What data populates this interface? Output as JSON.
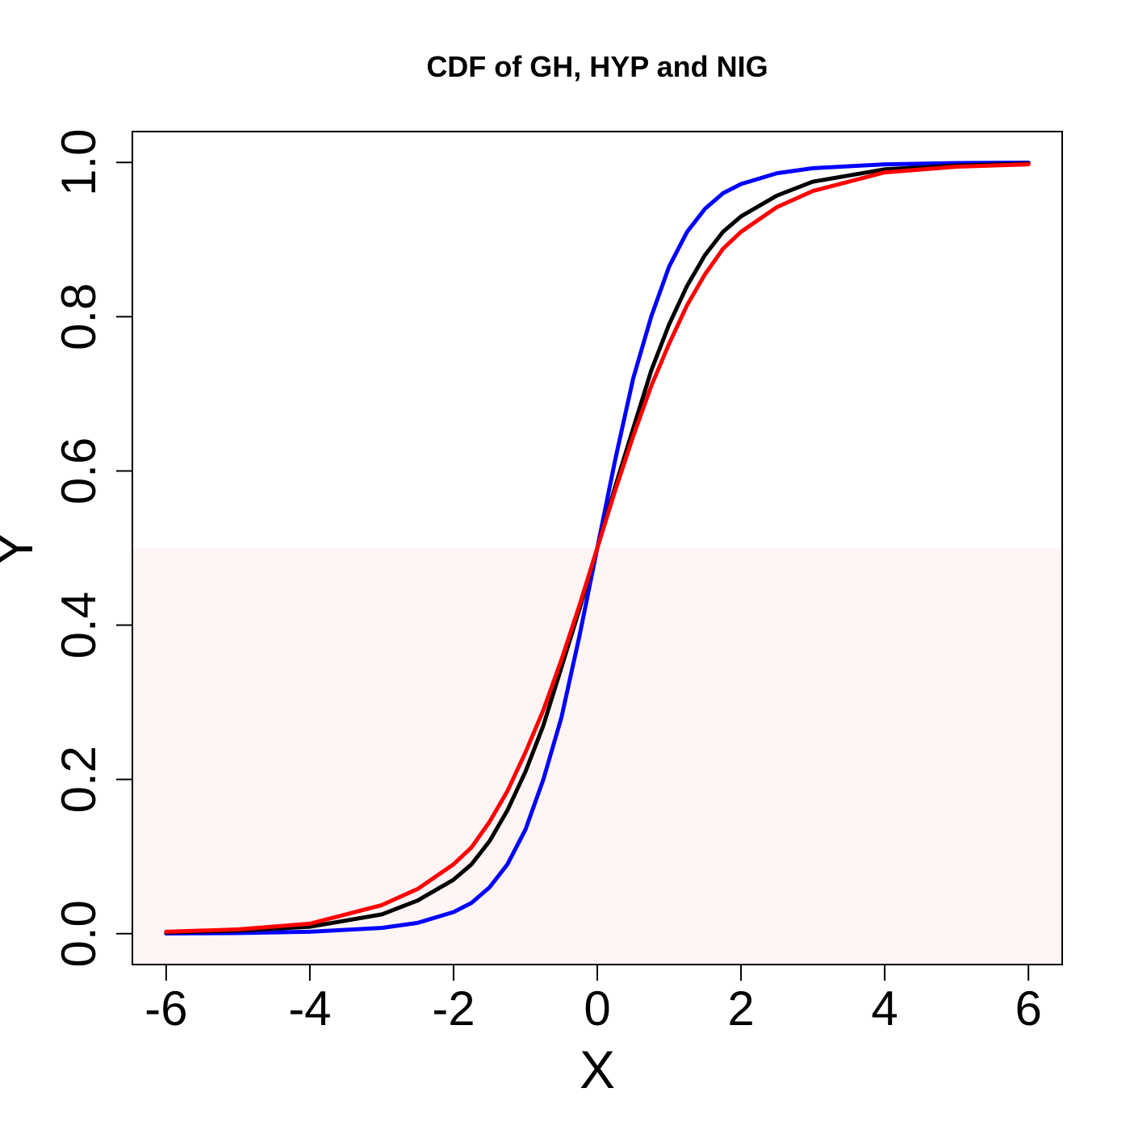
{
  "chart_data": {
    "type": "line",
    "title": "CDF of GH, HYP and NIG",
    "xlabel": "X",
    "ylabel": "Y",
    "xlim": [
      -6.47,
      6.47
    ],
    "ylim": [
      -0.04,
      1.04
    ],
    "x_ticks": [
      -6,
      -4,
      -2,
      0,
      2,
      4,
      6
    ],
    "x_tick_labels": [
      "-6",
      "-4",
      "-2",
      "0",
      "2",
      "4",
      "6"
    ],
    "y_ticks": [
      0.0,
      0.2,
      0.4,
      0.6,
      0.8,
      1.0
    ],
    "y_tick_labels": [
      "0.0",
      "0.2",
      "0.4",
      "0.6",
      "0.8",
      "1.0"
    ],
    "shaded_region": {
      "y_from": -0.04,
      "y_to": 0.5,
      "color": "#fff5f5"
    },
    "grid": false,
    "series": [
      {
        "name": "blue",
        "color": "#0000ff",
        "x": [
          -6,
          -5,
          -4,
          -3,
          -2.5,
          -2,
          -1.75,
          -1.5,
          -1.25,
          -1,
          -0.75,
          -0.5,
          -0.25,
          0,
          0.25,
          0.5,
          0.75,
          1,
          1.25,
          1.5,
          1.75,
          2,
          2.5,
          3,
          4,
          5,
          6
        ],
        "values": [
          0.0003,
          0.0008,
          0.0025,
          0.0075,
          0.014,
          0.028,
          0.04,
          0.06,
          0.09,
          0.135,
          0.2,
          0.28,
          0.385,
          0.5,
          0.615,
          0.72,
          0.8,
          0.865,
          0.91,
          0.94,
          0.96,
          0.972,
          0.986,
          0.9925,
          0.9975,
          0.9992,
          0.9997
        ]
      },
      {
        "name": "black",
        "color": "#000000",
        "x": [
          -6,
          -5,
          -4,
          -3,
          -2.5,
          -2,
          -1.75,
          -1.5,
          -1.25,
          -1,
          -0.75,
          -0.5,
          -0.25,
          0,
          0.25,
          0.5,
          0.75,
          1,
          1.25,
          1.5,
          1.75,
          2,
          2.5,
          3,
          4,
          5,
          6
        ],
        "values": [
          0.0015,
          0.004,
          0.009,
          0.025,
          0.043,
          0.07,
          0.09,
          0.12,
          0.16,
          0.21,
          0.27,
          0.345,
          0.42,
          0.5,
          0.58,
          0.655,
          0.73,
          0.79,
          0.84,
          0.88,
          0.91,
          0.93,
          0.957,
          0.975,
          0.991,
          0.996,
          0.9985
        ]
      },
      {
        "name": "red",
        "color": "#ff0000",
        "x": [
          -6,
          -5,
          -4,
          -3,
          -2.5,
          -2,
          -1.75,
          -1.5,
          -1.25,
          -1,
          -0.75,
          -0.5,
          -0.25,
          0,
          0.25,
          0.5,
          0.75,
          1,
          1.25,
          1.5,
          1.75,
          2,
          2.5,
          3,
          4,
          5,
          6
        ],
        "values": [
          0.0025,
          0.0055,
          0.013,
          0.037,
          0.058,
          0.09,
          0.112,
          0.145,
          0.185,
          0.235,
          0.29,
          0.355,
          0.425,
          0.5,
          0.575,
          0.645,
          0.71,
          0.765,
          0.815,
          0.855,
          0.888,
          0.91,
          0.942,
          0.963,
          0.987,
          0.9945,
          0.9975
        ]
      }
    ]
  }
}
